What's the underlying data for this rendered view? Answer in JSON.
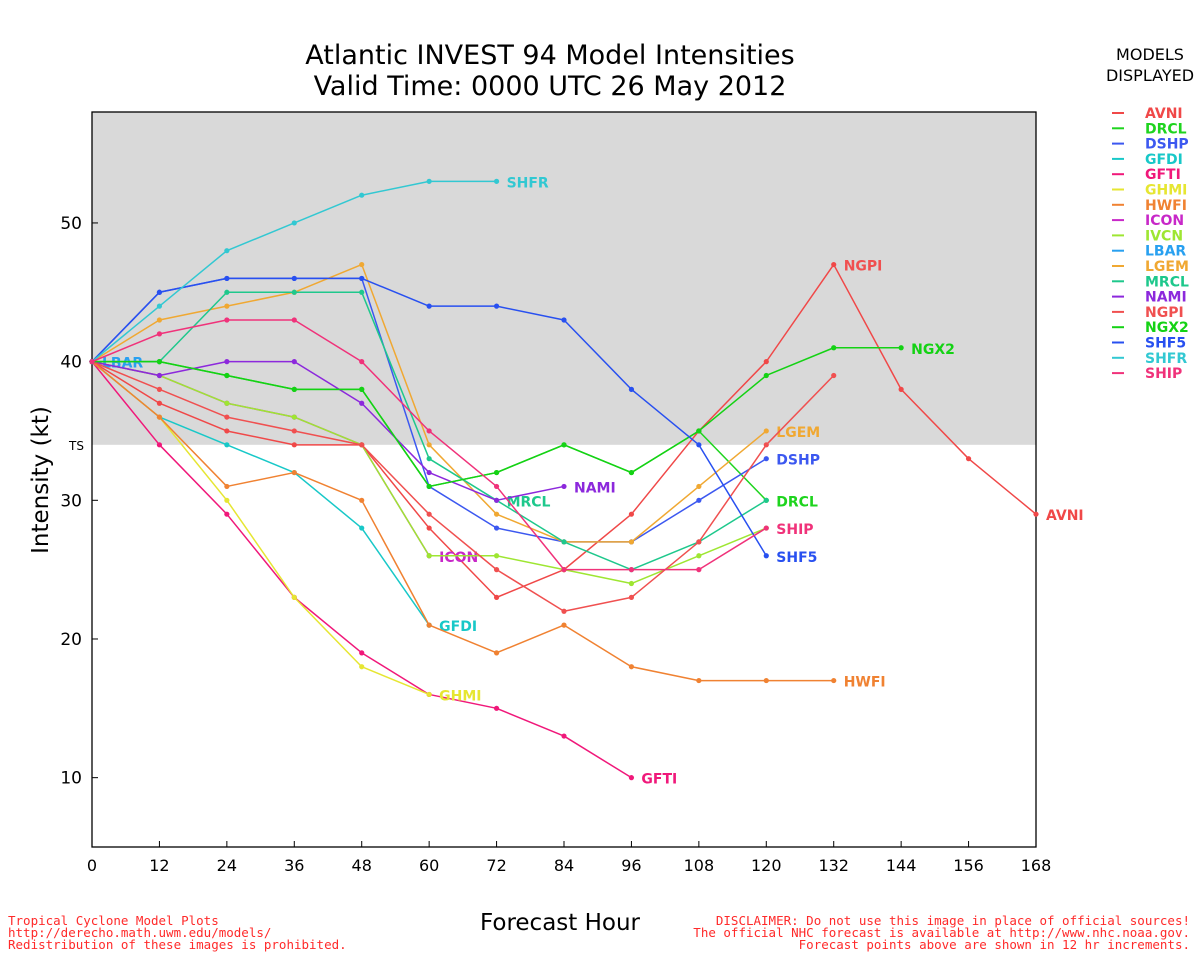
{
  "chart_data": {
    "type": "line",
    "title": "Atlantic INVEST 94 Model Intensities",
    "subtitle": "Valid Time: 0000 UTC 26 May 2012",
    "xlabel": "Forecast Hour",
    "ylabel": "Intensity (kt)",
    "xlim": [
      0,
      168
    ],
    "ylim": [
      5,
      58
    ],
    "x_ticks": [
      0,
      12,
      24,
      36,
      48,
      60,
      72,
      84,
      96,
      108,
      120,
      132,
      144,
      156,
      168
    ],
    "y_ticks": [
      10,
      20,
      30,
      40,
      50
    ],
    "threshold": {
      "label": "TS",
      "value": 34,
      "shade_above": true,
      "shade_color": "#d9d9d9"
    },
    "grid": false,
    "legend": {
      "title": "MODELS DISPLAYED",
      "placement": "right"
    },
    "series": [
      {
        "name": "AVNI",
        "color": "#f04848",
        "x": [
          0,
          12,
          24,
          36,
          48,
          60,
          72,
          84,
          96,
          108,
          120,
          132,
          144,
          156,
          168
        ],
        "y": [
          40,
          37,
          35,
          34,
          34,
          28,
          23,
          25,
          29,
          35,
          40,
          47,
          38,
          33,
          29
        ],
        "label_x": 168,
        "label_y": 29,
        "show_label": true
      },
      {
        "name": "DRCL",
        "color": "#1ed41e",
        "x": [
          0,
          12,
          24,
          36,
          48,
          60,
          72,
          84,
          96,
          108,
          120
        ],
        "y": [
          40,
          40,
          39,
          38,
          38,
          31,
          32,
          34,
          32,
          35,
          30
        ],
        "label_x": 120,
        "label_y": 30,
        "show_label": true
      },
      {
        "name": "DSHP",
        "color": "#3c58f0",
        "x": [
          0,
          12,
          24,
          36,
          48,
          60,
          72,
          84,
          96,
          108,
          120
        ],
        "y": [
          40,
          45,
          46,
          46,
          46,
          31,
          28,
          27,
          27,
          30,
          33
        ],
        "label_x": 120,
        "label_y": 33,
        "show_label": true
      },
      {
        "name": "GFDI",
        "color": "#18c8c8",
        "x": [
          0,
          12,
          24,
          36,
          48,
          60
        ],
        "y": [
          40,
          36,
          34,
          32,
          28,
          21
        ],
        "label_x": 60,
        "label_y": 21,
        "show_label": true
      },
      {
        "name": "GFTI",
        "color": "#f0187a",
        "x": [
          0,
          12,
          24,
          36,
          48,
          60,
          72,
          84,
          96
        ],
        "y": [
          40,
          34,
          29,
          23,
          19,
          16,
          15,
          13,
          10
        ],
        "label_x": 96,
        "label_y": 10,
        "show_label": true
      },
      {
        "name": "GHMI",
        "color": "#e6e632",
        "x": [
          0,
          12,
          24,
          36,
          48,
          60
        ],
        "y": [
          40,
          36,
          30,
          23,
          18,
          16
        ],
        "label_x": 60,
        "label_y": 16,
        "show_label": true
      },
      {
        "name": "HWFI",
        "color": "#f08232",
        "x": [
          0,
          12,
          24,
          36,
          48,
          60,
          72,
          84,
          96,
          108,
          120,
          132
        ],
        "y": [
          40,
          36,
          31,
          32,
          30,
          21,
          19,
          21,
          18,
          17,
          17,
          17
        ],
        "label_x": 132,
        "label_y": 17,
        "show_label": true
      },
      {
        "name": "ICON",
        "color": "#c828c8",
        "x": [
          0,
          12,
          24,
          36,
          48,
          60
        ],
        "y": [
          40,
          39,
          37,
          36,
          34,
          26
        ],
        "label_x": 60,
        "label_y": 26,
        "show_label": true
      },
      {
        "name": "IVCN",
        "color": "#9ee632",
        "x": [
          0,
          12,
          24,
          36,
          48,
          60,
          72,
          84,
          96,
          108,
          120
        ],
        "y": [
          40,
          39,
          37,
          36,
          34,
          26,
          26,
          25,
          24,
          26,
          28
        ],
        "label_x": 120,
        "label_y": 28,
        "show_label": false
      },
      {
        "name": "LBAR",
        "color": "#28a0f0",
        "x": [
          0
        ],
        "y": [
          40
        ],
        "label_x": 0,
        "label_y": 40,
        "show_label": true
      },
      {
        "name": "LGEM",
        "color": "#f0a832",
        "x": [
          0,
          12,
          24,
          36,
          48,
          60,
          72,
          84,
          96,
          108,
          120
        ],
        "y": [
          40,
          43,
          44,
          45,
          47,
          34,
          29,
          27,
          27,
          31,
          35
        ],
        "label_x": 120,
        "label_y": 35,
        "show_label": true
      },
      {
        "name": "MRCL",
        "color": "#1ec88c",
        "x": [
          0,
          12,
          24,
          36,
          48,
          60,
          72,
          84,
          96,
          108,
          120
        ],
        "y": [
          40,
          40,
          45,
          45,
          45,
          33,
          30,
          27,
          25,
          27,
          30
        ],
        "label_x": 72,
        "label_y": 30,
        "show_label": true
      },
      {
        "name": "NAMI",
        "color": "#8c28dc",
        "x": [
          0,
          12,
          24,
          36,
          48,
          60,
          72,
          84
        ],
        "y": [
          40,
          39,
          40,
          40,
          37,
          32,
          30,
          31
        ],
        "label_x": 84,
        "label_y": 31,
        "show_label": true
      },
      {
        "name": "NGPI",
        "color": "#f05050",
        "x": [
          0,
          12,
          24,
          36,
          48,
          60,
          72,
          84,
          96,
          108,
          120,
          132
        ],
        "y": [
          40,
          38,
          36,
          35,
          34,
          29,
          25,
          22,
          23,
          27,
          34,
          39
        ],
        "label_x": 132,
        "label_y": 47,
        "show_label": true
      },
      {
        "name": "NGX2",
        "color": "#14d214",
        "x": [
          0,
          12,
          24,
          36,
          48,
          60,
          72,
          84,
          96,
          108,
          120,
          132,
          144
        ],
        "y": [
          40,
          40,
          39,
          38,
          38,
          31,
          32,
          34,
          32,
          35,
          39,
          41,
          41
        ],
        "label_x": 144,
        "label_y": 41,
        "show_label": true
      },
      {
        "name": "SHF5",
        "color": "#2850f0",
        "x": [
          0,
          12,
          24,
          36,
          48,
          60,
          72,
          84,
          96,
          108,
          120
        ],
        "y": [
          40,
          45,
          46,
          46,
          46,
          44,
          44,
          43,
          38,
          34,
          26
        ],
        "label_x": 120,
        "label_y": 26,
        "show_label": true
      },
      {
        "name": "SHFR",
        "color": "#32c8d2",
        "x": [
          0,
          12,
          24,
          36,
          48,
          60,
          72
        ],
        "y": [
          40,
          44,
          48,
          50,
          52,
          53,
          53
        ],
        "label_x": 72,
        "label_y": 53,
        "show_label": true
      },
      {
        "name": "SHIP",
        "color": "#f0327a",
        "x": [
          0,
          12,
          24,
          36,
          48,
          60,
          72,
          84,
          96,
          108,
          120
        ],
        "y": [
          40,
          42,
          43,
          43,
          40,
          35,
          31,
          25,
          25,
          25,
          28
        ],
        "label_x": 120,
        "label_y": 28,
        "show_label": true
      }
    ]
  },
  "footer_left": [
    "Tropical Cyclone Model Plots",
    "http://derecho.math.uwm.edu/models/",
    "Redistribution of these images is prohibited."
  ],
  "footer_right": [
    "DISCLAIMER: Do not use this image in place of official sources!",
    "The official NHC forecast is available at http://www.nhc.noaa.gov.",
    "Forecast points above are shown in 12 hr increments."
  ]
}
